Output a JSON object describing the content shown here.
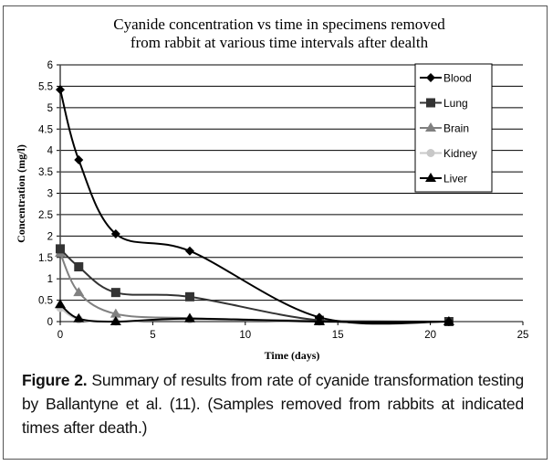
{
  "chart_data": {
    "type": "line",
    "title": [
      "Cyanide concentration vs time in specimens removed",
      "from rabbit at various time intervals after dealth"
    ],
    "xlabel": "Time (days)",
    "ylabel": "Concentration (mg/l)",
    "xlim": [
      0,
      25
    ],
    "ylim": [
      0,
      6
    ],
    "xticks": [
      "0",
      "5",
      "10",
      "15",
      "20",
      "25"
    ],
    "yticks": [
      "0",
      "0.5",
      "1",
      "1.5",
      "2",
      "2.5",
      "3",
      "3.5",
      "4",
      "4.5",
      "5",
      "5.5",
      "6"
    ],
    "grid": true,
    "smooth": true,
    "legend_position": "top-right",
    "x": [
      0,
      1,
      3,
      7,
      14,
      21
    ],
    "series": [
      {
        "name": "Blood",
        "marker": "diamond",
        "color": "#000000",
        "values": [
          5.42,
          3.78,
          2.05,
          1.65,
          0.1,
          0.0
        ]
      },
      {
        "name": "Lung",
        "marker": "square",
        "color": "#333333",
        "values": [
          1.7,
          1.28,
          0.68,
          0.58,
          0.03,
          0.0
        ]
      },
      {
        "name": "Brain",
        "marker": "triangle",
        "color": "#808080",
        "values": [
          1.6,
          0.68,
          0.18,
          0.08,
          0.02,
          0.0
        ]
      },
      {
        "name": "Kidney",
        "marker": "circle",
        "color": "#c8c8c8",
        "values": [
          0.32,
          0.05,
          0.0,
          0.05,
          0.0,
          0.0
        ]
      },
      {
        "name": "Liver",
        "marker": "triangle",
        "color": "#000000",
        "values": [
          0.4,
          0.07,
          0.0,
          0.07,
          0.0,
          0.0
        ]
      }
    ]
  },
  "caption": {
    "label": "Figure 2.",
    "text": " Summary of results from rate of cyanide transformation testing by Ballantyne et al. (11). (Samples removed from rabbits at indicated times after death.)"
  }
}
